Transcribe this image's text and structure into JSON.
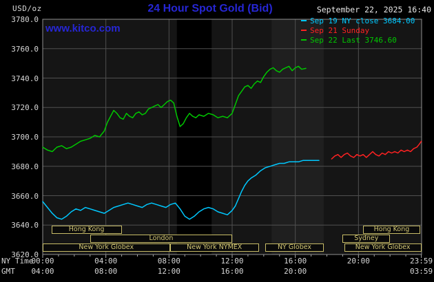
{
  "header": {
    "unit_label": "USD/oz",
    "title": "24 Hour Spot Gold (Bid)",
    "datetime": "September 22, 2025 16:40",
    "watermark": "www.kitco.com"
  },
  "colors": {
    "accent_blue": "#2626d4",
    "session_tan": "#c9bd68",
    "session_text": "#d3c775",
    "grid": "#505050",
    "plot_border": "#909090",
    "plot_background": "#151515",
    "axis_text": "#d8d8d8",
    "background": "#000000"
  },
  "legend": [
    {
      "label": "Sep 19 NY close 3684.00",
      "color": "#00c8ff"
    },
    {
      "label": "Sep 21 Sunday",
      "color": "#ff2222"
    },
    {
      "label": "Sep 22 Last 3746.60",
      "color": "#00c800"
    }
  ],
  "axes": {
    "ny_label": "NY Time",
    "gmt_label": "GMT",
    "y_ticks": [
      {
        "value": 3780,
        "label": "3780.0"
      },
      {
        "value": 3760,
        "label": "3760.0"
      },
      {
        "value": 3740,
        "label": "3740.0"
      },
      {
        "value": 3720,
        "label": "3720.0"
      },
      {
        "value": 3700,
        "label": "3700.0"
      },
      {
        "value": 3680,
        "label": "3680.0"
      },
      {
        "value": 3660,
        "label": "3660.0"
      },
      {
        "value": 3640,
        "label": "3640.0"
      },
      {
        "value": 3620,
        "label": "3620.0"
      }
    ],
    "ny_ticks": [
      {
        "hour": 0,
        "label": "00:00"
      },
      {
        "hour": 4,
        "label": "04:00"
      },
      {
        "hour": 8,
        "label": "08:00"
      },
      {
        "hour": 12,
        "label": "12:00"
      },
      {
        "hour": 16,
        "label": "16:00"
      },
      {
        "hour": 20,
        "label": "20:00"
      },
      {
        "hour": 23.983,
        "label": "23:59"
      }
    ],
    "gmt_ticks": [
      {
        "hour": 0,
        "label": "04:00"
      },
      {
        "hour": 4,
        "label": "08:00"
      },
      {
        "hour": 8,
        "label": "12:00"
      },
      {
        "hour": 12,
        "label": "16:00"
      },
      {
        "hour": 16,
        "label": "20:00"
      },
      {
        "hour": 23.983,
        "label": "03:59"
      }
    ]
  },
  "sessions": [
    {
      "row": 1,
      "start": 0.55,
      "end": 5.0,
      "label": "Hong Kong"
    },
    {
      "row": 1,
      "start": 20.3,
      "end": 23.9,
      "label": "Hong Kong"
    },
    {
      "row": 2,
      "start": 3.0,
      "end": 12.0,
      "label": "London"
    },
    {
      "row": 2,
      "start": 19.0,
      "end": 22.0,
      "label": "Sydney"
    },
    {
      "row": 3,
      "start": 0.0,
      "end": 8.05,
      "label": "New York Globex"
    },
    {
      "row": 3,
      "start": 8.05,
      "end": 13.7,
      "label": "New York NYMEX"
    },
    {
      "row": 3,
      "start": 14.1,
      "end": 17.8,
      "label": "NY Globex"
    },
    {
      "row": 3,
      "start": 19.1,
      "end": 23.983,
      "label": "New York Globex"
    }
  ],
  "chart_data": {
    "type": "line",
    "title": "24 Hour Spot Gold (Bid)",
    "xlabel": "NY Time (hours)",
    "ylabel": "USD/oz",
    "ylim": [
      3620,
      3780
    ],
    "xlim_hours": [
      0,
      24
    ],
    "grid": true,
    "legend_position": "top-right",
    "bands": [
      {
        "start": 8.5,
        "end": 10.7,
        "color": "#000000"
      },
      {
        "start": 14.5,
        "end": 17.8,
        "color": "#1f1f1f"
      }
    ],
    "series": [
      {
        "id": "sep19-ny-close",
        "name": "Sep 19 NY close 3684.00",
        "color": "#00c8ff",
        "points": [
          [
            0,
            3656
          ],
          [
            0.3,
            3652
          ],
          [
            0.6,
            3648
          ],
          [
            0.9,
            3645
          ],
          [
            1.2,
            3644
          ],
          [
            1.5,
            3646
          ],
          [
            1.8,
            3649
          ],
          [
            2.1,
            3651
          ],
          [
            2.4,
            3650
          ],
          [
            2.7,
            3652
          ],
          [
            3.0,
            3651
          ],
          [
            3.3,
            3650
          ],
          [
            3.6,
            3649
          ],
          [
            3.9,
            3648
          ],
          [
            4.2,
            3650
          ],
          [
            4.5,
            3652
          ],
          [
            4.8,
            3653
          ],
          [
            5.1,
            3654
          ],
          [
            5.4,
            3655
          ],
          [
            5.7,
            3654
          ],
          [
            6.0,
            3653
          ],
          [
            6.3,
            3652
          ],
          [
            6.6,
            3654
          ],
          [
            6.9,
            3655
          ],
          [
            7.2,
            3654
          ],
          [
            7.5,
            3653
          ],
          [
            7.8,
            3652
          ],
          [
            8.1,
            3654
          ],
          [
            8.4,
            3655
          ],
          [
            8.7,
            3651
          ],
          [
            9.0,
            3646
          ],
          [
            9.3,
            3644
          ],
          [
            9.6,
            3646
          ],
          [
            9.9,
            3649
          ],
          [
            10.2,
            3651
          ],
          [
            10.5,
            3652
          ],
          [
            10.8,
            3651
          ],
          [
            11.1,
            3649
          ],
          [
            11.4,
            3648
          ],
          [
            11.7,
            3647
          ],
          [
            12.0,
            3650
          ],
          [
            12.2,
            3653
          ],
          [
            12.4,
            3658
          ],
          [
            12.6,
            3663
          ],
          [
            12.8,
            3667
          ],
          [
            13.0,
            3670
          ],
          [
            13.2,
            3672
          ],
          [
            13.5,
            3674
          ],
          [
            13.8,
            3677
          ],
          [
            14.1,
            3679
          ],
          [
            14.4,
            3680
          ],
          [
            14.7,
            3681
          ],
          [
            15.0,
            3682
          ],
          [
            15.3,
            3682
          ],
          [
            15.6,
            3683
          ],
          [
            15.9,
            3683
          ],
          [
            16.2,
            3683
          ],
          [
            16.5,
            3684
          ],
          [
            16.8,
            3684
          ],
          [
            17.1,
            3684
          ],
          [
            17.5,
            3684
          ]
        ]
      },
      {
        "id": "sep21-sunday",
        "name": "Sep 21 Sunday",
        "color": "#ff2222",
        "points": [
          [
            18.3,
            3685
          ],
          [
            18.5,
            3687
          ],
          [
            18.7,
            3688
          ],
          [
            18.9,
            3686
          ],
          [
            19.1,
            3688
          ],
          [
            19.3,
            3689
          ],
          [
            19.5,
            3687
          ],
          [
            19.7,
            3686
          ],
          [
            19.9,
            3688
          ],
          [
            20.1,
            3687
          ],
          [
            20.3,
            3688
          ],
          [
            20.5,
            3686
          ],
          [
            20.7,
            3688
          ],
          [
            20.9,
            3690
          ],
          [
            21.1,
            3688
          ],
          [
            21.3,
            3687
          ],
          [
            21.5,
            3689
          ],
          [
            21.7,
            3688
          ],
          [
            21.9,
            3690
          ],
          [
            22.1,
            3689
          ],
          [
            22.3,
            3690
          ],
          [
            22.5,
            3689
          ],
          [
            22.7,
            3691
          ],
          [
            22.9,
            3690
          ],
          [
            23.1,
            3691
          ],
          [
            23.3,
            3690
          ],
          [
            23.5,
            3692
          ],
          [
            23.7,
            3693
          ],
          [
            23.85,
            3695
          ],
          [
            23.983,
            3697
          ]
        ]
      },
      {
        "id": "sep22-last",
        "name": "Sep 22 Last 3746.60",
        "color": "#00c800",
        "points": [
          [
            0,
            3693
          ],
          [
            0.3,
            3691
          ],
          [
            0.6,
            3690
          ],
          [
            0.9,
            3693
          ],
          [
            1.2,
            3694
          ],
          [
            1.5,
            3692
          ],
          [
            1.8,
            3693
          ],
          [
            2.1,
            3695
          ],
          [
            2.4,
            3697
          ],
          [
            2.7,
            3698
          ],
          [
            3.0,
            3699
          ],
          [
            3.3,
            3701
          ],
          [
            3.6,
            3700
          ],
          [
            3.9,
            3704
          ],
          [
            4.1,
            3710
          ],
          [
            4.3,
            3714
          ],
          [
            4.5,
            3718
          ],
          [
            4.7,
            3716
          ],
          [
            4.9,
            3713
          ],
          [
            5.1,
            3712
          ],
          [
            5.3,
            3716
          ],
          [
            5.5,
            3714
          ],
          [
            5.7,
            3713
          ],
          [
            5.9,
            3716
          ],
          [
            6.1,
            3717
          ],
          [
            6.3,
            3715
          ],
          [
            6.5,
            3716
          ],
          [
            6.7,
            3719
          ],
          [
            6.9,
            3720
          ],
          [
            7.1,
            3721
          ],
          [
            7.3,
            3722
          ],
          [
            7.5,
            3720
          ],
          [
            7.7,
            3722
          ],
          [
            7.9,
            3724
          ],
          [
            8.1,
            3725
          ],
          [
            8.3,
            3723
          ],
          [
            8.5,
            3714
          ],
          [
            8.7,
            3707
          ],
          [
            8.9,
            3709
          ],
          [
            9.1,
            3713
          ],
          [
            9.3,
            3716
          ],
          [
            9.5,
            3714
          ],
          [
            9.7,
            3713
          ],
          [
            9.9,
            3715
          ],
          [
            10.2,
            3714
          ],
          [
            10.5,
            3716
          ],
          [
            10.8,
            3715
          ],
          [
            11.1,
            3713
          ],
          [
            11.4,
            3714
          ],
          [
            11.7,
            3713
          ],
          [
            12.0,
            3716
          ],
          [
            12.2,
            3722
          ],
          [
            12.4,
            3728
          ],
          [
            12.6,
            3731
          ],
          [
            12.8,
            3734
          ],
          [
            13.0,
            3735
          ],
          [
            13.2,
            3733
          ],
          [
            13.4,
            3736
          ],
          [
            13.6,
            3738
          ],
          [
            13.8,
            3737
          ],
          [
            14.0,
            3741
          ],
          [
            14.2,
            3744
          ],
          [
            14.4,
            3746
          ],
          [
            14.6,
            3747
          ],
          [
            14.8,
            3745
          ],
          [
            15.0,
            3744
          ],
          [
            15.2,
            3746
          ],
          [
            15.4,
            3747
          ],
          [
            15.6,
            3748
          ],
          [
            15.8,
            3745
          ],
          [
            16.0,
            3747
          ],
          [
            16.2,
            3748
          ],
          [
            16.4,
            3746
          ],
          [
            16.67,
            3746.6
          ]
        ]
      }
    ]
  }
}
